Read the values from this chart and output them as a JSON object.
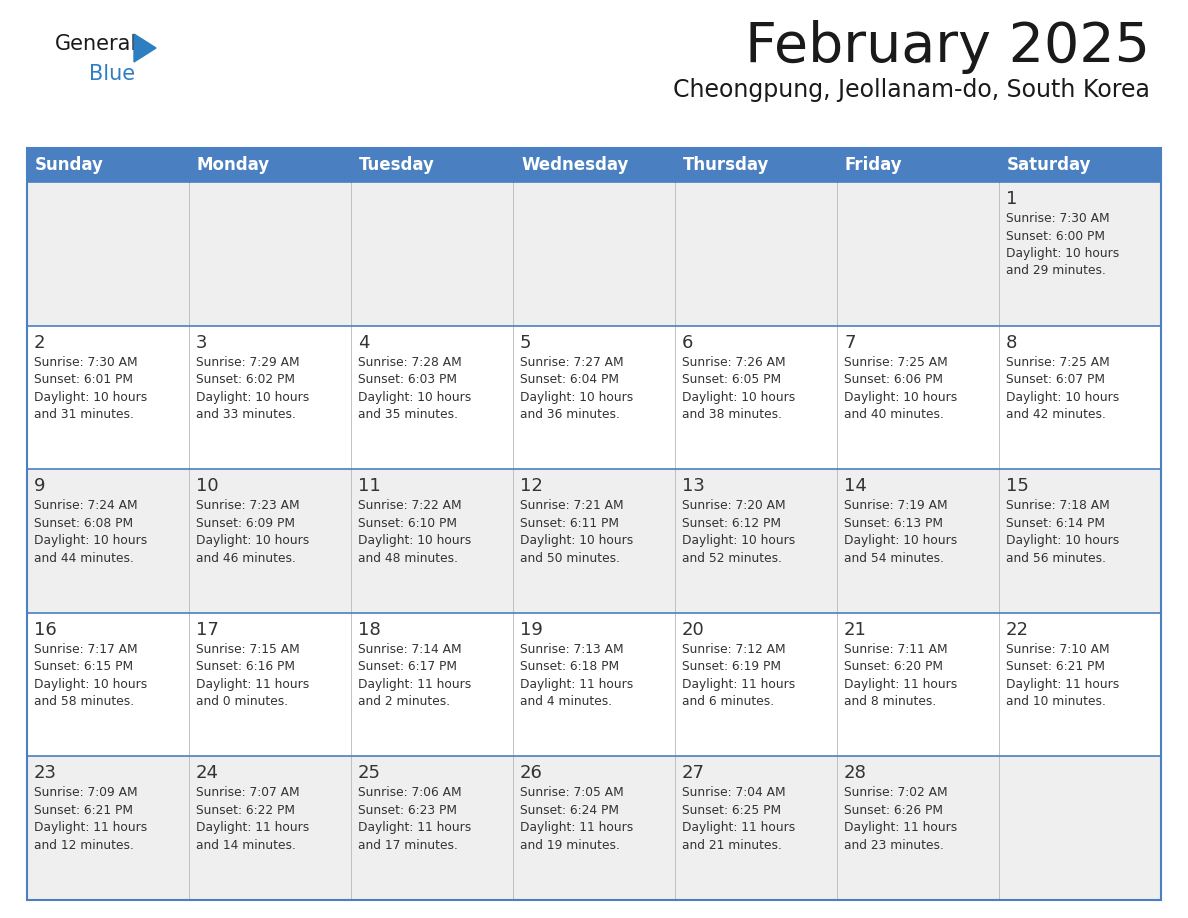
{
  "title": "February 2025",
  "subtitle": "Cheongpung, Jeollanam-do, South Korea",
  "days_of_week": [
    "Sunday",
    "Monday",
    "Tuesday",
    "Wednesday",
    "Thursday",
    "Friday",
    "Saturday"
  ],
  "header_bg": "#4a7fc1",
  "header_text": "#ffffff",
  "row_bg_odd": "#efefef",
  "row_bg_even": "#ffffff",
  "border_color": "#4a7fc1",
  "day_num_color": "#333333",
  "cell_text_color": "#333333",
  "title_color": "#1a1a1a",
  "logo_general_color": "#1a1a1a",
  "logo_blue_color": "#2e7fc1",
  "calendar_data": [
    [
      null,
      null,
      null,
      null,
      null,
      null,
      {
        "day": 1,
        "sunrise": "7:30 AM",
        "sunset": "6:00 PM",
        "daylight_hours": 10,
        "daylight_minutes": 29
      }
    ],
    [
      {
        "day": 2,
        "sunrise": "7:30 AM",
        "sunset": "6:01 PM",
        "daylight_hours": 10,
        "daylight_minutes": 31
      },
      {
        "day": 3,
        "sunrise": "7:29 AM",
        "sunset": "6:02 PM",
        "daylight_hours": 10,
        "daylight_minutes": 33
      },
      {
        "day": 4,
        "sunrise": "7:28 AM",
        "sunset": "6:03 PM",
        "daylight_hours": 10,
        "daylight_minutes": 35
      },
      {
        "day": 5,
        "sunrise": "7:27 AM",
        "sunset": "6:04 PM",
        "daylight_hours": 10,
        "daylight_minutes": 36
      },
      {
        "day": 6,
        "sunrise": "7:26 AM",
        "sunset": "6:05 PM",
        "daylight_hours": 10,
        "daylight_minutes": 38
      },
      {
        "day": 7,
        "sunrise": "7:25 AM",
        "sunset": "6:06 PM",
        "daylight_hours": 10,
        "daylight_minutes": 40
      },
      {
        "day": 8,
        "sunrise": "7:25 AM",
        "sunset": "6:07 PM",
        "daylight_hours": 10,
        "daylight_minutes": 42
      }
    ],
    [
      {
        "day": 9,
        "sunrise": "7:24 AM",
        "sunset": "6:08 PM",
        "daylight_hours": 10,
        "daylight_minutes": 44
      },
      {
        "day": 10,
        "sunrise": "7:23 AM",
        "sunset": "6:09 PM",
        "daylight_hours": 10,
        "daylight_minutes": 46
      },
      {
        "day": 11,
        "sunrise": "7:22 AM",
        "sunset": "6:10 PM",
        "daylight_hours": 10,
        "daylight_minutes": 48
      },
      {
        "day": 12,
        "sunrise": "7:21 AM",
        "sunset": "6:11 PM",
        "daylight_hours": 10,
        "daylight_minutes": 50
      },
      {
        "day": 13,
        "sunrise": "7:20 AM",
        "sunset": "6:12 PM",
        "daylight_hours": 10,
        "daylight_minutes": 52
      },
      {
        "day": 14,
        "sunrise": "7:19 AM",
        "sunset": "6:13 PM",
        "daylight_hours": 10,
        "daylight_minutes": 54
      },
      {
        "day": 15,
        "sunrise": "7:18 AM",
        "sunset": "6:14 PM",
        "daylight_hours": 10,
        "daylight_minutes": 56
      }
    ],
    [
      {
        "day": 16,
        "sunrise": "7:17 AM",
        "sunset": "6:15 PM",
        "daylight_hours": 10,
        "daylight_minutes": 58
      },
      {
        "day": 17,
        "sunrise": "7:15 AM",
        "sunset": "6:16 PM",
        "daylight_hours": 11,
        "daylight_minutes": 0
      },
      {
        "day": 18,
        "sunrise": "7:14 AM",
        "sunset": "6:17 PM",
        "daylight_hours": 11,
        "daylight_minutes": 2
      },
      {
        "day": 19,
        "sunrise": "7:13 AM",
        "sunset": "6:18 PM",
        "daylight_hours": 11,
        "daylight_minutes": 4
      },
      {
        "day": 20,
        "sunrise": "7:12 AM",
        "sunset": "6:19 PM",
        "daylight_hours": 11,
        "daylight_minutes": 6
      },
      {
        "day": 21,
        "sunrise": "7:11 AM",
        "sunset": "6:20 PM",
        "daylight_hours": 11,
        "daylight_minutes": 8
      },
      {
        "day": 22,
        "sunrise": "7:10 AM",
        "sunset": "6:21 PM",
        "daylight_hours": 11,
        "daylight_minutes": 10
      }
    ],
    [
      {
        "day": 23,
        "sunrise": "7:09 AM",
        "sunset": "6:21 PM",
        "daylight_hours": 11,
        "daylight_minutes": 12
      },
      {
        "day": 24,
        "sunrise": "7:07 AM",
        "sunset": "6:22 PM",
        "daylight_hours": 11,
        "daylight_minutes": 14
      },
      {
        "day": 25,
        "sunrise": "7:06 AM",
        "sunset": "6:23 PM",
        "daylight_hours": 11,
        "daylight_minutes": 17
      },
      {
        "day": 26,
        "sunrise": "7:05 AM",
        "sunset": "6:24 PM",
        "daylight_hours": 11,
        "daylight_minutes": 19
      },
      {
        "day": 27,
        "sunrise": "7:04 AM",
        "sunset": "6:25 PM",
        "daylight_hours": 11,
        "daylight_minutes": 21
      },
      {
        "day": 28,
        "sunrise": "7:02 AM",
        "sunset": "6:26 PM",
        "daylight_hours": 11,
        "daylight_minutes": 23
      },
      null
    ]
  ],
  "figsize": [
    11.88,
    9.18
  ],
  "dpi": 100
}
